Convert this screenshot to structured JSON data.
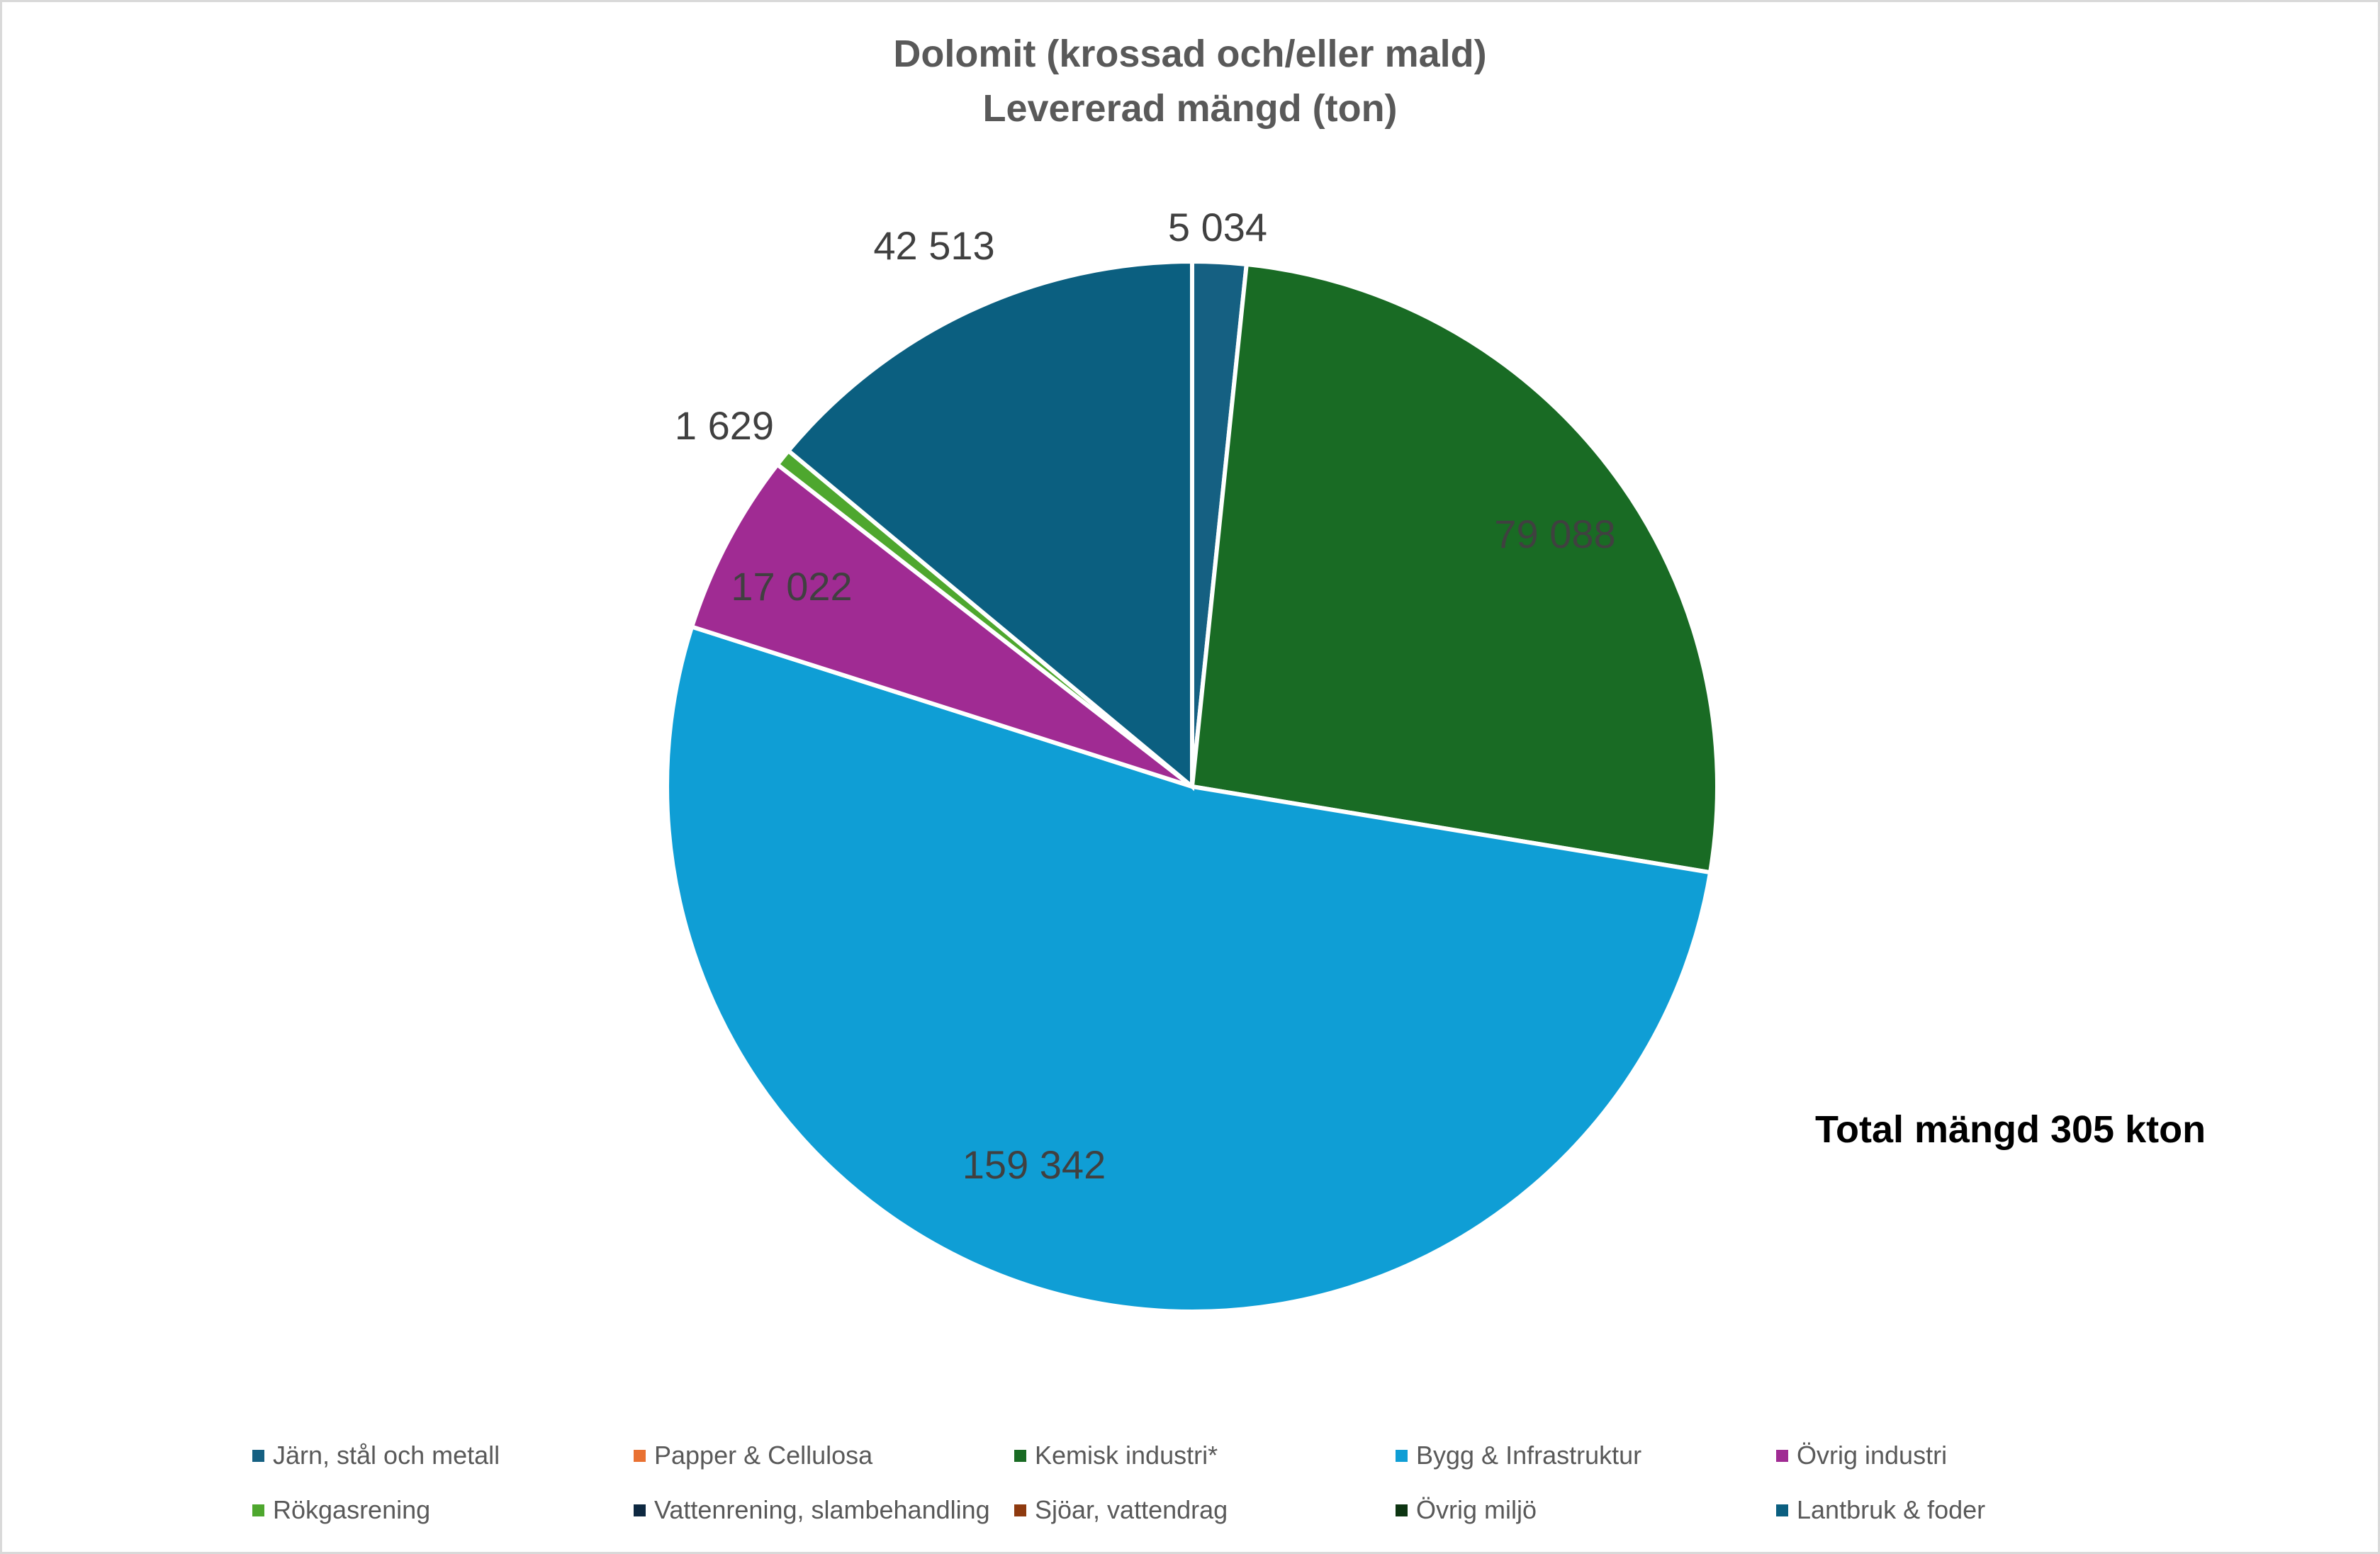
{
  "chart_data": {
    "type": "pie",
    "title": [
      "Dolomit (krossad och/eller mald)",
      "Levererad mängd (ton)"
    ],
    "annotation": "Total mängd 305 kton",
    "legend_position": "bottom",
    "categories": [
      "Järn, stål och metall",
      "Papper & Cellulosa",
      "Kemisk industri*",
      "Bygg & Infrastruktur",
      "Övrig industri",
      "Rökgasrening",
      "Vattenrening, slambehandling",
      "Sjöar, vattendrag",
      "Övrig miljö",
      "Lantbruk & foder"
    ],
    "values": [
      5034,
      0,
      79088,
      159342,
      17022,
      1629,
      0,
      0,
      0,
      42513
    ],
    "data_labels": [
      "5 034",
      "",
      "79 088",
      "159 342",
      "17 022",
      "1 629",
      "",
      "",
      "",
      "42 513"
    ],
    "colors": [
      "#156082",
      "#E97132",
      "#196B24",
      "#0F9ED5",
      "#A02B93",
      "#4EA72E",
      "#0E2841",
      "#8E3A0F",
      "#0D3512",
      "#0B5F80"
    ]
  }
}
